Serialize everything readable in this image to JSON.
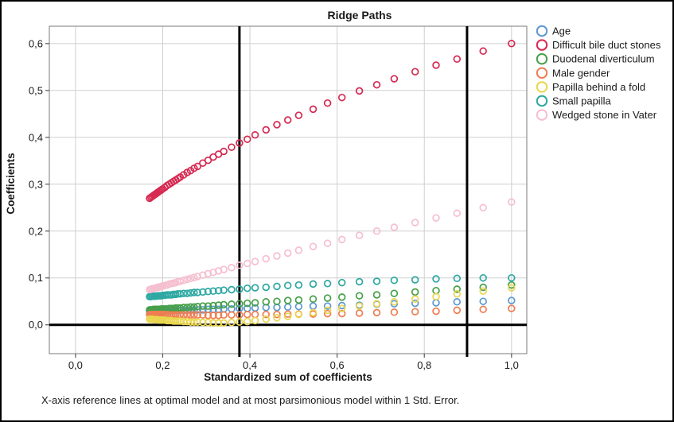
{
  "title": "Ridge Paths",
  "caption": "X-axis reference lines at optimal model and at most parsimonious model within 1 Std. Error.",
  "axes": {
    "x": {
      "label": "Standardized sum of coefficients"
    },
    "y": {
      "label": "Coefficients"
    }
  },
  "colors": {
    "grid": "#cfcfcf",
    "plot_border": "#8f8f8f",
    "reference_line": "#000000",
    "zero_line": "#000000",
    "text": "#1a1a1a"
  },
  "legend": {
    "items": [
      {
        "label": "Age",
        "color": "#5b9ad2"
      },
      {
        "label": "Difficult bile duct stones",
        "color": "#d62a52"
      },
      {
        "label": "Duodenal diverticulum",
        "color": "#46a049"
      },
      {
        "label": "Male gender",
        "color": "#ef7d51"
      },
      {
        "label": "Papilla behind a fold",
        "color": "#e9d64f"
      },
      {
        "label": "Small papilla",
        "color": "#2fa8a2"
      },
      {
        "label": "Wedged stone in Vater",
        "color": "#f6bfd0"
      }
    ]
  },
  "chart_data": {
    "type": "scatter",
    "title": "Ridge Paths",
    "xlabel": "Standardized sum of coefficients",
    "ylabel": "Coefficients",
    "xlim": [
      -0.06,
      1.035
    ],
    "ylim": [
      -0.0615,
      0.637
    ],
    "grid": true,
    "legend_position": "right",
    "marker": "open-circle",
    "reference_lines_x": [
      0.376,
      0.898
    ],
    "baseline_y": 0,
    "x_ticks": {
      "values": [
        0,
        0.2,
        0.4,
        0.6,
        0.8,
        1.0
      ],
      "labels": [
        "0,0",
        "0,2",
        "0,4",
        "0,6",
        "0,8",
        "1,0"
      ]
    },
    "y_ticks": {
      "values": [
        0,
        0.1,
        0.2,
        0.3,
        0.4,
        0.5,
        0.6
      ],
      "labels": [
        "0,0",
        "0,1",
        "0,2",
        "0,3",
        "0,4",
        "0,5",
        "0,6"
      ]
    },
    "x": [
      0.17,
      0.173,
      0.176,
      0.179,
      0.182,
      0.185,
      0.188,
      0.191,
      0.194,
      0.197,
      0.2,
      0.205,
      0.21,
      0.215,
      0.22,
      0.225,
      0.23,
      0.235,
      0.24,
      0.248,
      0.256,
      0.264,
      0.272,
      0.28,
      0.292,
      0.304,
      0.316,
      0.328,
      0.34,
      0.358,
      0.376,
      0.394,
      0.412,
      0.437,
      0.462,
      0.487,
      0.512,
      0.545,
      0.578,
      0.611,
      0.651,
      0.691,
      0.731,
      0.779,
      0.827,
      0.875,
      0.935,
      1.0
    ],
    "series": [
      {
        "name": "Age",
        "color": "#5b9ad2",
        "values": [
          0.029,
          0.029,
          0.029,
          0.029,
          0.029,
          0.029,
          0.03,
          0.03,
          0.03,
          0.03,
          0.03,
          0.03,
          0.03,
          0.03,
          0.03,
          0.031,
          0.031,
          0.031,
          0.031,
          0.031,
          0.031,
          0.032,
          0.032,
          0.032,
          0.032,
          0.033,
          0.033,
          0.033,
          0.034,
          0.034,
          0.035,
          0.035,
          0.036,
          0.037,
          0.037,
          0.038,
          0.039,
          0.04,
          0.04,
          0.041,
          0.042,
          0.044,
          0.045,
          0.046,
          0.047,
          0.049,
          0.05,
          0.052
        ]
      },
      {
        "name": "Difficult bile duct stones",
        "color": "#d62a52",
        "values": [
          0.27,
          0.272,
          0.274,
          0.276,
          0.278,
          0.28,
          0.282,
          0.284,
          0.286,
          0.288,
          0.29,
          0.293,
          0.297,
          0.3,
          0.303,
          0.306,
          0.309,
          0.312,
          0.315,
          0.32,
          0.325,
          0.329,
          0.334,
          0.338,
          0.345,
          0.351,
          0.358,
          0.364,
          0.37,
          0.379,
          0.388,
          0.396,
          0.405,
          0.416,
          0.427,
          0.437,
          0.447,
          0.46,
          0.473,
          0.485,
          0.499,
          0.512,
          0.525,
          0.54,
          0.554,
          0.567,
          0.584,
          0.6
        ]
      },
      {
        "name": "Duodenal diverticulum",
        "color": "#46a049",
        "values": [
          0.032,
          0.032,
          0.032,
          0.033,
          0.033,
          0.033,
          0.033,
          0.033,
          0.033,
          0.034,
          0.034,
          0.034,
          0.034,
          0.035,
          0.035,
          0.035,
          0.036,
          0.036,
          0.036,
          0.037,
          0.037,
          0.038,
          0.038,
          0.039,
          0.04,
          0.04,
          0.041,
          0.042,
          0.043,
          0.044,
          0.045,
          0.046,
          0.047,
          0.049,
          0.05,
          0.052,
          0.053,
          0.055,
          0.057,
          0.059,
          0.062,
          0.064,
          0.067,
          0.07,
          0.073,
          0.076,
          0.08,
          0.085
        ]
      },
      {
        "name": "Male gender",
        "color": "#ef7d51",
        "values": [
          0.022,
          0.022,
          0.022,
          0.022,
          0.022,
          0.022,
          0.022,
          0.022,
          0.022,
          0.022,
          0.022,
          0.022,
          0.022,
          0.021,
          0.021,
          0.021,
          0.021,
          0.021,
          0.021,
          0.021,
          0.021,
          0.021,
          0.021,
          0.021,
          0.021,
          0.02,
          0.02,
          0.02,
          0.021,
          0.021,
          0.021,
          0.022,
          0.022,
          0.022,
          0.022,
          0.023,
          0.023,
          0.023,
          0.024,
          0.024,
          0.025,
          0.026,
          0.027,
          0.028,
          0.029,
          0.031,
          0.033,
          0.035
        ]
      },
      {
        "name": "Papilla behind a fold",
        "color": "#e9d64f",
        "values": [
          0.012,
          0.012,
          0.012,
          0.011,
          0.011,
          0.011,
          0.011,
          0.01,
          0.01,
          0.01,
          0.01,
          0.01,
          0.009,
          0.009,
          0.009,
          0.008,
          0.008,
          0.008,
          0.008,
          0.007,
          0.007,
          0.006,
          0.006,
          0.006,
          0.005,
          0.005,
          0.004,
          0.004,
          0.004,
          0.005,
          0.006,
          0.007,
          0.009,
          0.012,
          0.015,
          0.018,
          0.022,
          0.026,
          0.031,
          0.035,
          0.04,
          0.045,
          0.049,
          0.055,
          0.06,
          0.066,
          0.072,
          0.079
        ]
      },
      {
        "name": "Small papilla",
        "color": "#2fa8a2",
        "values": [
          0.06,
          0.06,
          0.061,
          0.061,
          0.061,
          0.061,
          0.062,
          0.062,
          0.062,
          0.062,
          0.063,
          0.063,
          0.064,
          0.064,
          0.064,
          0.065,
          0.065,
          0.066,
          0.066,
          0.067,
          0.067,
          0.068,
          0.069,
          0.069,
          0.07,
          0.071,
          0.072,
          0.073,
          0.074,
          0.075,
          0.076,
          0.078,
          0.079,
          0.08,
          0.082,
          0.084,
          0.085,
          0.087,
          0.088,
          0.09,
          0.092,
          0.093,
          0.095,
          0.096,
          0.098,
          0.099,
          0.1,
          0.1
        ]
      },
      {
        "name": "Wedged stone in Vater",
        "color": "#f6bfd0",
        "values": [
          0.075,
          0.076,
          0.077,
          0.077,
          0.078,
          0.079,
          0.08,
          0.08,
          0.081,
          0.082,
          0.083,
          0.084,
          0.085,
          0.087,
          0.088,
          0.089,
          0.09,
          0.092,
          0.093,
          0.095,
          0.097,
          0.099,
          0.101,
          0.103,
          0.106,
          0.109,
          0.112,
          0.115,
          0.118,
          0.122,
          0.127,
          0.131,
          0.135,
          0.141,
          0.147,
          0.153,
          0.159,
          0.167,
          0.174,
          0.182,
          0.191,
          0.2,
          0.208,
          0.218,
          0.228,
          0.238,
          0.25,
          0.262
        ]
      }
    ]
  }
}
